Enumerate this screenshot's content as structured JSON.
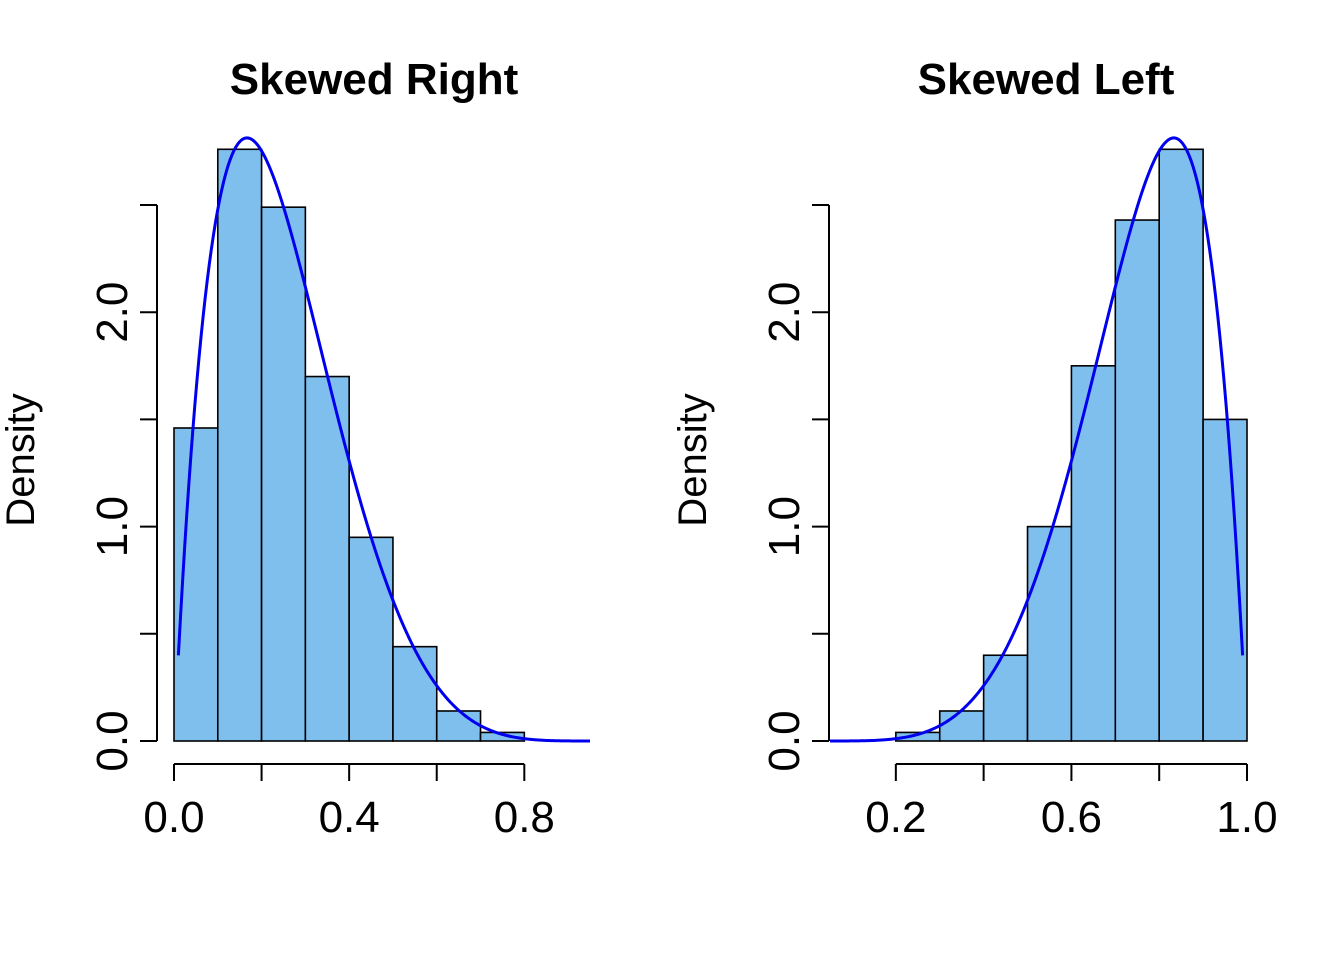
{
  "chart_data": [
    {
      "type": "bar",
      "title": "Skewed Right",
      "xlabel": "",
      "ylabel": "Density",
      "bin_edges": [
        0.0,
        0.1,
        0.2,
        0.3,
        0.4,
        0.5,
        0.6,
        0.7,
        0.8
      ],
      "densities": [
        1.46,
        2.76,
        2.49,
        1.7,
        0.95,
        0.44,
        0.14,
        0.04
      ],
      "xlim": [
        0.0,
        0.95
      ],
      "ylim": [
        0.0,
        2.85
      ],
      "x_ticks": [
        0.0,
        0.2,
        0.4,
        0.6,
        0.8
      ],
      "x_tick_labels": [
        "0.0",
        "0.4",
        "0.8"
      ],
      "x_tick_labels_at": [
        0.0,
        0.4,
        0.8
      ],
      "y_ticks": [
        0.0,
        0.5,
        1.0,
        1.5,
        2.0,
        2.5
      ],
      "y_tick_labels": [
        "0.0",
        "1.0",
        "2.0"
      ],
      "y_tick_labels_at": [
        0.0,
        1.0,
        2.0
      ],
      "curve": {
        "kind": "beta",
        "a": 2,
        "b": 6,
        "from": 0.01,
        "to": 0.95
      },
      "colors": {
        "bar_fill": "#7fbfee",
        "curve": "#0000ee"
      }
    },
    {
      "type": "bar",
      "title": "Skewed Left",
      "xlabel": "",
      "ylabel": "Density",
      "bin_edges": [
        0.2,
        0.3,
        0.4,
        0.5,
        0.6,
        0.7,
        0.8,
        0.9,
        1.0
      ],
      "densities": [
        0.04,
        0.14,
        0.4,
        1.0,
        1.75,
        2.43,
        2.76,
        1.5
      ],
      "xlim": [
        0.05,
        1.0
      ],
      "ylim": [
        0.0,
        2.85
      ],
      "x_ticks": [
        0.2,
        0.4,
        0.6,
        0.8,
        1.0
      ],
      "x_tick_labels": [
        "0.2",
        "0.6",
        "1.0"
      ],
      "x_tick_labels_at": [
        0.2,
        0.6,
        1.0
      ],
      "y_ticks": [
        0.0,
        0.5,
        1.0,
        1.5,
        2.0,
        2.5
      ],
      "y_tick_labels": [
        "0.0",
        "1.0",
        "2.0"
      ],
      "y_tick_labels_at": [
        0.0,
        1.0,
        2.0
      ],
      "curve": {
        "kind": "beta",
        "a": 6,
        "b": 2,
        "from": 0.05,
        "to": 0.99
      },
      "colors": {
        "bar_fill": "#7fbfee",
        "curve": "#0000ee"
      }
    }
  ]
}
